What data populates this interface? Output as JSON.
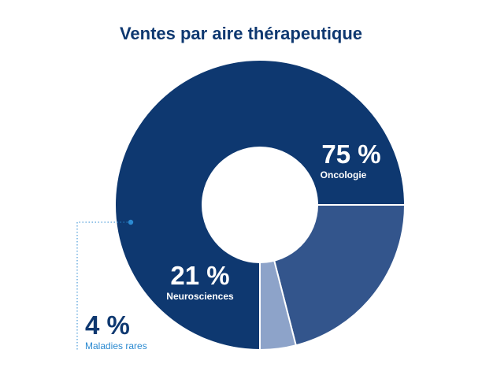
{
  "chart_data": {
    "type": "pie",
    "title": "Ventes par aire thérapeutique",
    "categories": [
      "Oncologie",
      "Neurosciences",
      "Maladies rares"
    ],
    "values": [
      75,
      21,
      4
    ],
    "value_labels": [
      "75 %",
      "21 %",
      "4 %"
    ],
    "colors": [
      "#0e3870",
      "#33558c",
      "#8da3c9"
    ],
    "donut": true
  },
  "colors": {
    "title": "#0e3870",
    "callout": "#2b8ad1",
    "background": "#ffffff"
  }
}
